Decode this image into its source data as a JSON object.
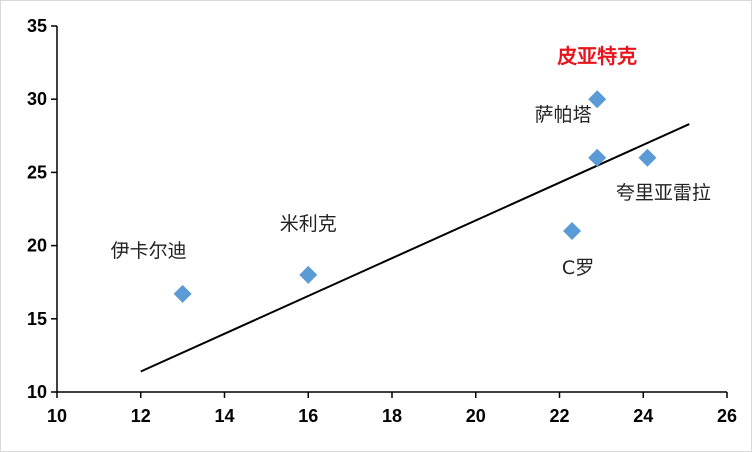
{
  "colors": {
    "marker": "#5b9bd5",
    "highlight": "#e8141b",
    "trendline": "#000000",
    "axis": "#000000"
  },
  "chart_data": {
    "type": "scatter",
    "title": "",
    "xlabel": "",
    "ylabel": "",
    "xlim": [
      10,
      26
    ],
    "ylim": [
      10,
      35
    ],
    "x_ticks": [
      "10",
      "12",
      "14",
      "16",
      "18",
      "20",
      "22",
      "24",
      "26"
    ],
    "y_ticks": [
      "10",
      "15",
      "20",
      "25",
      "30",
      "35"
    ],
    "grid": false,
    "legend": "none",
    "points": [
      {
        "label": "伊卡尔迪",
        "x": 13.0,
        "y": 16.7,
        "highlight": false,
        "label_pos": "above-left"
      },
      {
        "label": "米利克",
        "x": 16.0,
        "y": 18.0,
        "highlight": false,
        "label_pos": "above"
      },
      {
        "label": "C罗",
        "x": 22.3,
        "y": 21.0,
        "highlight": false,
        "label_pos": "below"
      },
      {
        "label": "萨帕塔",
        "x": 22.9,
        "y": 26.0,
        "highlight": false,
        "label_pos": "above-left"
      },
      {
        "label": "夸里亚雷拉",
        "x": 24.1,
        "y": 26.0,
        "highlight": false,
        "label_pos": "below"
      },
      {
        "label": "皮亚特克",
        "x": 22.9,
        "y": 30.0,
        "highlight": true,
        "label_pos": "above"
      }
    ],
    "trendline": {
      "x": [
        12.0,
        25.1
      ],
      "y": [
        11.4,
        28.3
      ]
    }
  }
}
